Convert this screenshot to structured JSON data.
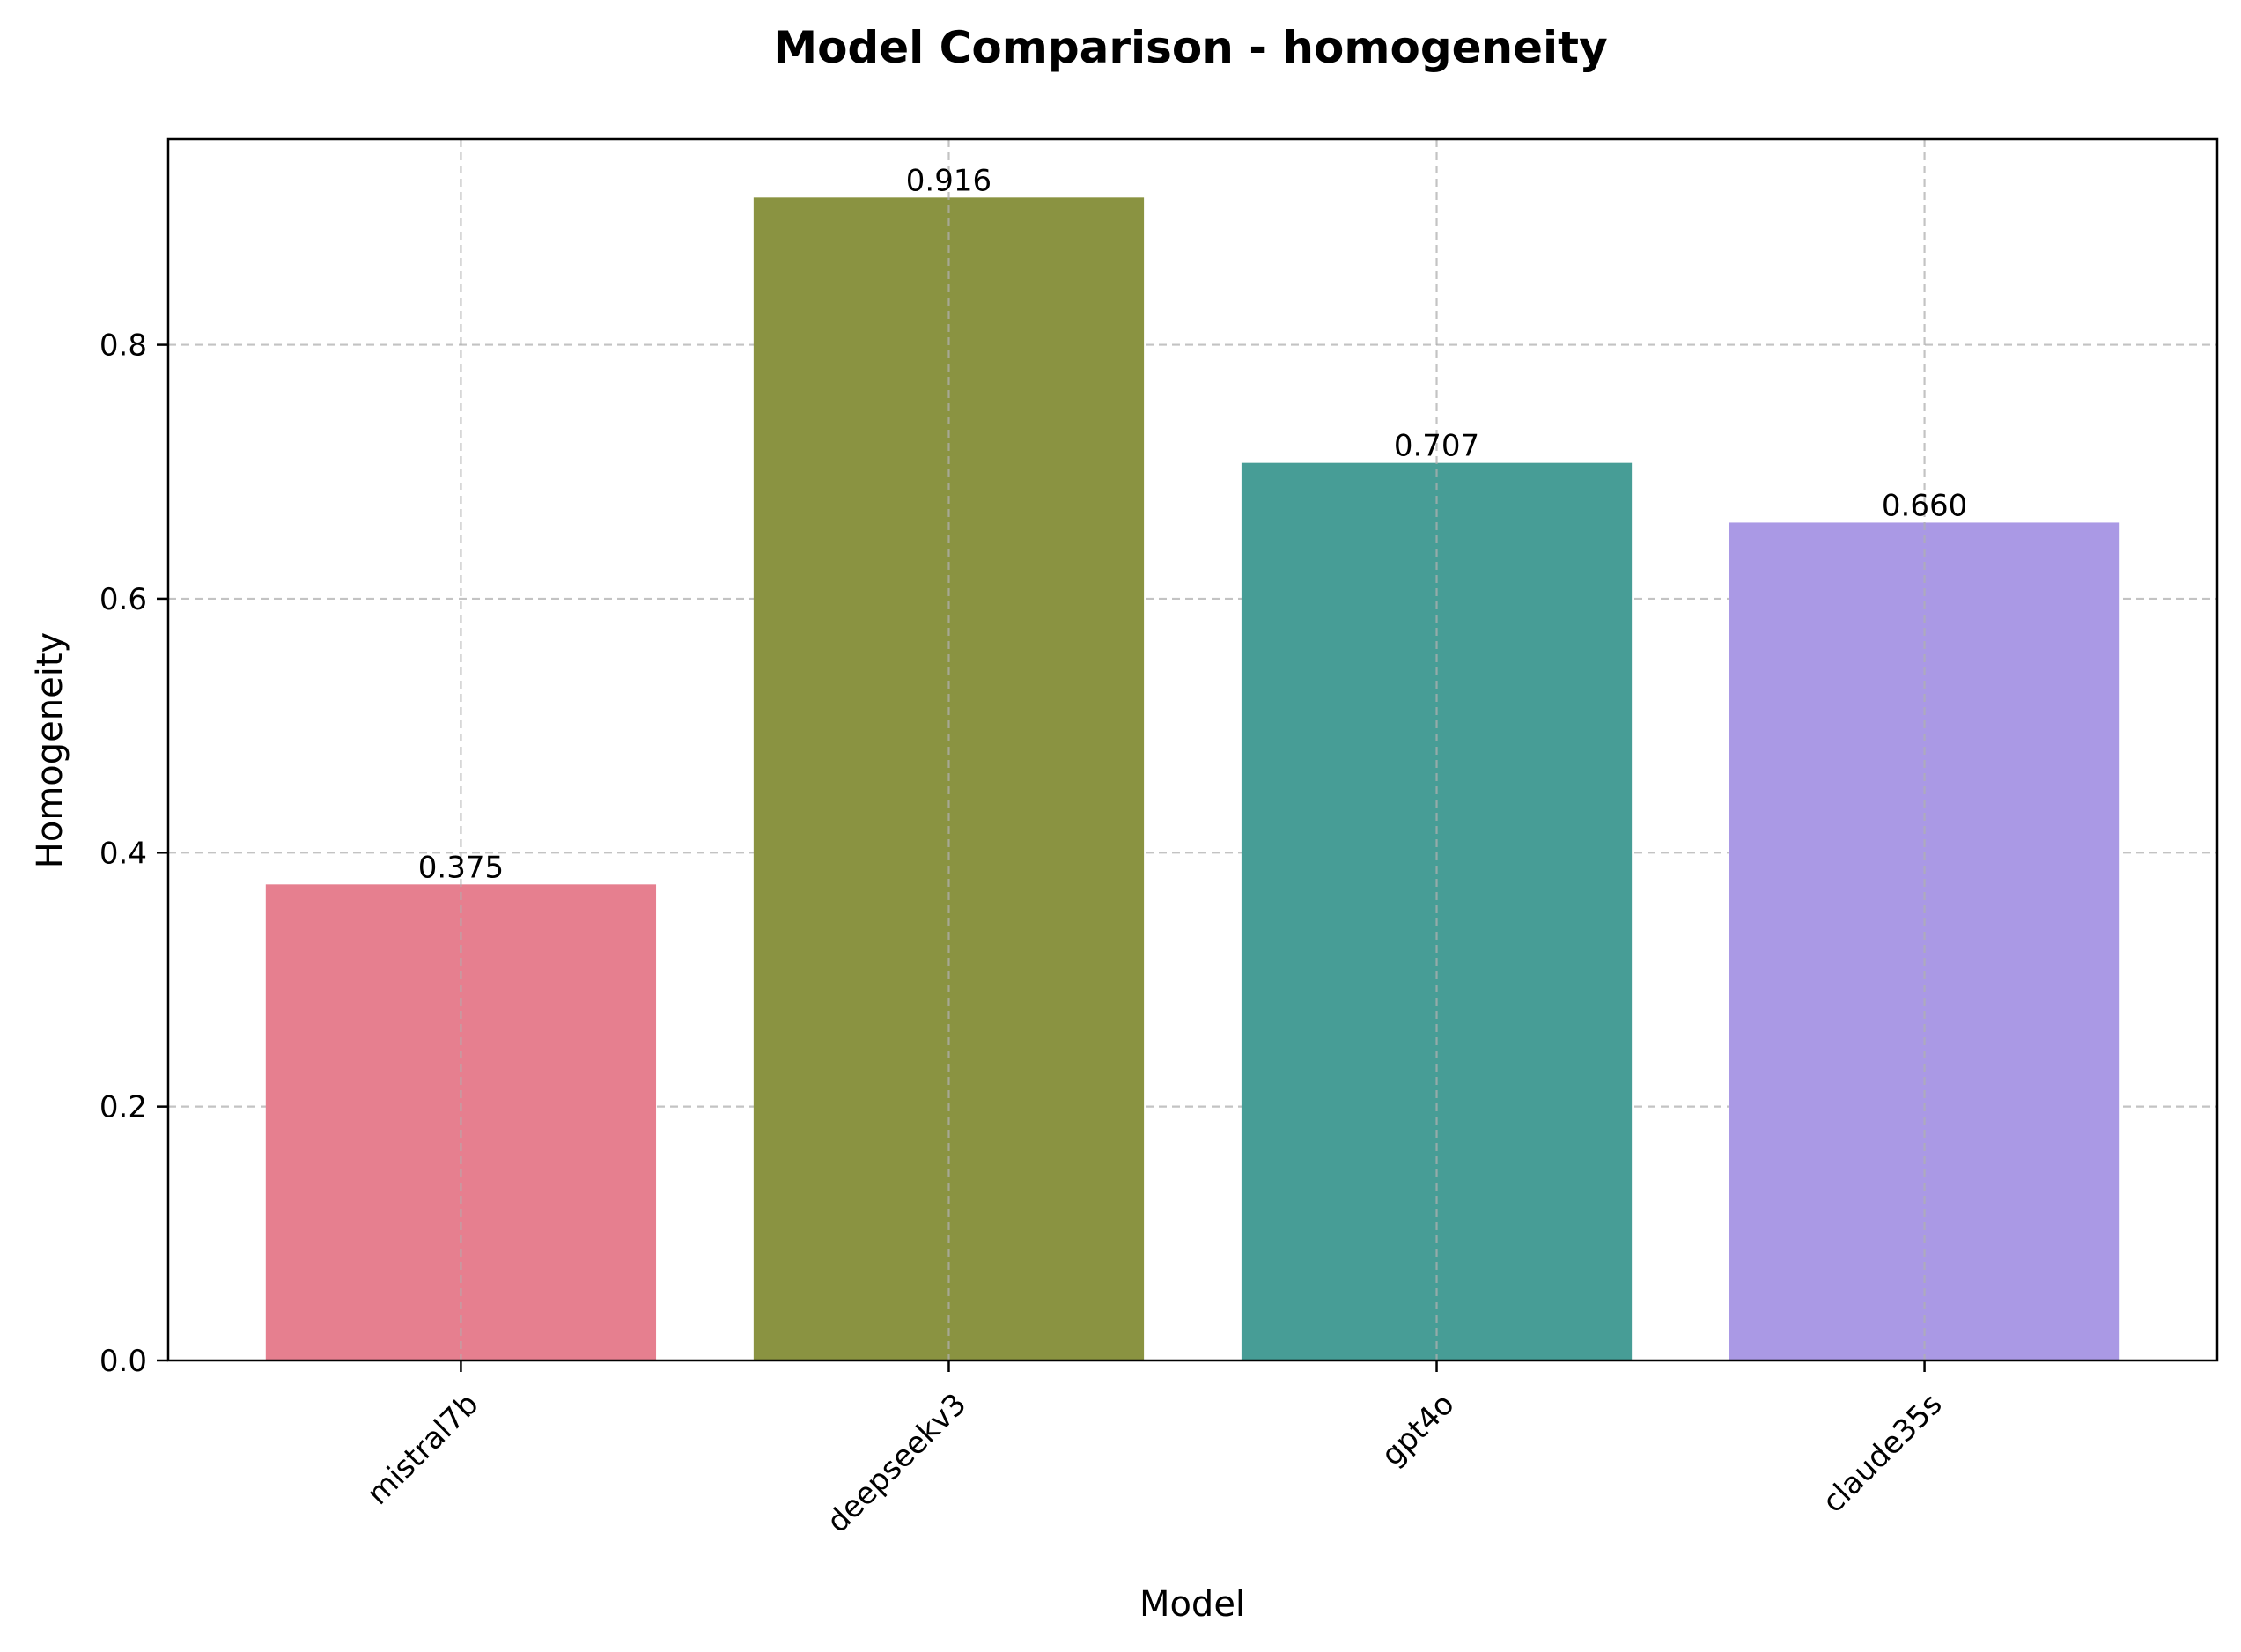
{
  "chart_data": {
    "type": "bar",
    "title": "Model Comparison - homogeneity",
    "xlabel": "Model",
    "ylabel": "Homogeneity",
    "categories": [
      "mistral7b",
      "deepseekv3",
      "gpt4o",
      "claude35s"
    ],
    "values": [
      0.375,
      0.916,
      0.707,
      0.66
    ],
    "value_labels": [
      "0.375",
      "0.916",
      "0.707",
      "0.660"
    ],
    "colors": [
      "#e67f8f",
      "#8a9341",
      "#479d96",
      "#aa99e5"
    ],
    "ylim": [
      0,
      0.962
    ],
    "yticks": [
      0.0,
      0.2,
      0.4,
      0.6,
      0.8
    ],
    "ytick_labels": [
      "0.0",
      "0.2",
      "0.4",
      "0.6",
      "0.8"
    ],
    "grid": true,
    "xtick_rotation_deg": 45
  }
}
